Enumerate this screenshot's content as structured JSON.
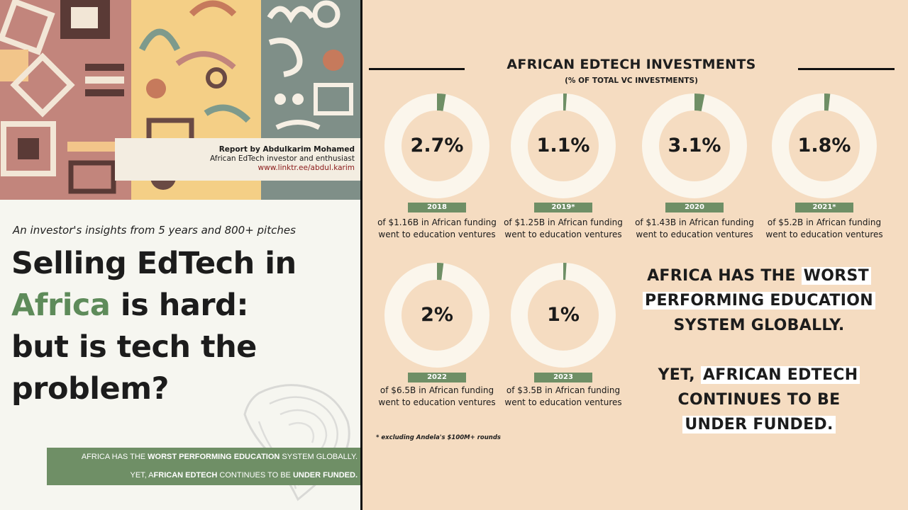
{
  "report": {
    "author_line": "Report by Abdulkarim Mohamed",
    "role_line": "African EdTech investor and enthusiast",
    "link": "www.linktr.ee/abdul.karim"
  },
  "tagline": "An investor's insights from 5 years and 800+ pitches",
  "headline": {
    "line1": "Selling EdTech in",
    "word_green": "Africa",
    "line2_rest": " is hard:",
    "line3": "but is tech the",
    "line4": "problem?"
  },
  "banner": {
    "l1_a": "AFRICA HAS THE ",
    "l1_b": "WORST PERFORMING EDUCATION",
    "l1_c": " SYSTEM GLOBALLY.",
    "l2_a": "YET, A",
    "l2_b": "FRICAN EDTECH",
    "l2_c": " CONTINUES TO BE ",
    "l2_d": "UNDER FUNDED."
  },
  "infographic": {
    "title": "AFRICAN EDTECH INVESTMENTS",
    "subtitle": "(% OF TOTAL VC INVESTMENTS)",
    "footnote": "* excluding Andela's $100M+ rounds"
  },
  "donuts": [
    {
      "year": "2018",
      "pct_label": "2.7%",
      "value": 2.7,
      "total": "$1.16B",
      "caption": "of $1.16B in African funding went to education ventures"
    },
    {
      "year": "2019*",
      "pct_label": "1.1%",
      "value": 1.1,
      "total": "$1.25B",
      "caption": "of $1.25B in African funding went to education ventures"
    },
    {
      "year": "2020",
      "pct_label": "3.1%",
      "value": 3.1,
      "total": "$1.43B",
      "caption": "of $1.43B in African funding went to education ventures"
    },
    {
      "year": "2021*",
      "pct_label": "1.8%",
      "value": 1.8,
      "total": "$5.2B",
      "caption": "of $5.2B in African funding went to education ventures"
    },
    {
      "year": "2022",
      "pct_label": "2%",
      "value": 2,
      "total": "$6.5B",
      "caption": "of $6.5B in African funding went to education ventures"
    },
    {
      "year": "2023",
      "pct_label": "1%",
      "value": 1,
      "total": "$3.5B",
      "caption": "of $3.5B in African funding went to education ventures"
    }
  ],
  "claims": {
    "c1_a": "AFRICA HAS THE ",
    "c1_b": "WORST",
    "c1_line2": "PERFORMING EDUCATION",
    "c1_line3": "SYSTEM GLOBALLY.",
    "c2_a": "YET, ",
    "c2_b": "AFRICAN EDTECH",
    "c2_line2": "CONTINUES TO BE",
    "c2_line3": "UNDER FUNDED."
  },
  "colors": {
    "accent_green": "#6f8f66",
    "ring": "#fbf6ec",
    "background": "#f5dcc1"
  }
}
